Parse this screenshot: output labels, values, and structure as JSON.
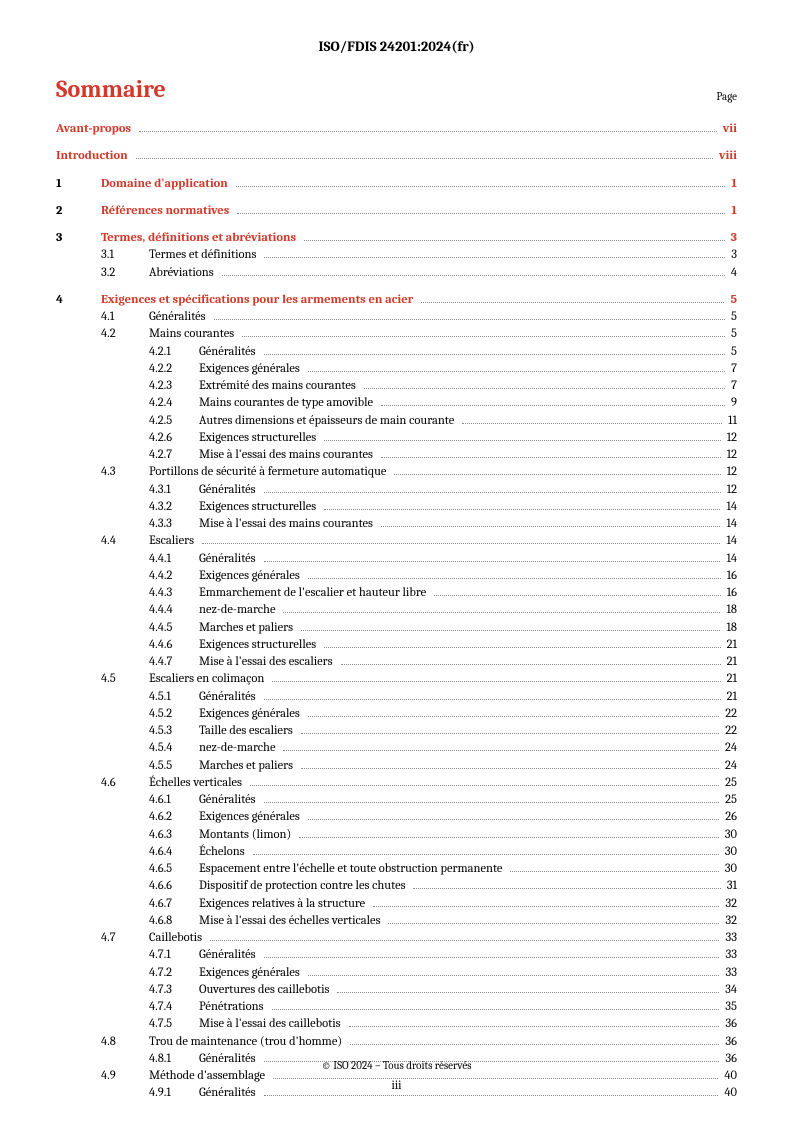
{
  "header": "ISO/FDIS 24201:2024(fr)",
  "title": "Sommaire",
  "page_label": "Page",
  "footer_copyright": "© ISO 2024 – Tous droits réservés",
  "footer_page": "iii",
  "toc": [
    {
      "level": 0,
      "num": "",
      "text": "Avant-propos",
      "page": "vii"
    },
    {
      "level": 0,
      "num": "",
      "text": "Introduction",
      "page": "viii"
    },
    {
      "level": 0,
      "num": "1",
      "text": "Domaine d'application",
      "page": "1"
    },
    {
      "level": 0,
      "num": "2",
      "text": "Références normatives",
      "page": "1"
    },
    {
      "level": 0,
      "num": "3",
      "text": "Termes, définitions et abréviations",
      "page": "3"
    },
    {
      "level": 1,
      "num": "3.1",
      "text": "Termes et définitions",
      "page": "3"
    },
    {
      "level": 1,
      "num": "3.2",
      "text": "Abréviations",
      "page": "4"
    },
    {
      "level": 0,
      "num": "4",
      "text": "Exigences et spécifications pour les armements en acier",
      "page": "5"
    },
    {
      "level": 1,
      "num": "4.1",
      "text": "Généralités",
      "page": "5"
    },
    {
      "level": 1,
      "num": "4.2",
      "text": "Mains courantes",
      "page": "5"
    },
    {
      "level": 2,
      "num": "4.2.1",
      "text": "Généralités",
      "page": "5"
    },
    {
      "level": 2,
      "num": "4.2.2",
      "text": "Exigences générales",
      "page": "7"
    },
    {
      "level": 2,
      "num": "4.2.3",
      "text": "Extrémité des mains courantes",
      "page": "7"
    },
    {
      "level": 2,
      "num": "4.2.4",
      "text": "Mains courantes de type amovible",
      "page": "9"
    },
    {
      "level": 2,
      "num": "4.2.5",
      "text": "Autres dimensions et épaisseurs de main courante",
      "page": "11"
    },
    {
      "level": 2,
      "num": "4.2.6",
      "text": "Exigences structurelles",
      "page": "12"
    },
    {
      "level": 2,
      "num": "4.2.7",
      "text": "Mise à l'essai des mains courantes",
      "page": "12"
    },
    {
      "level": 1,
      "num": "4.3",
      "text": "Portillons de sécurité à fermeture automatique",
      "page": "12"
    },
    {
      "level": 2,
      "num": "4.3.1",
      "text": "Généralités",
      "page": "12"
    },
    {
      "level": 2,
      "num": "4.3.2",
      "text": "Exigences structurelles",
      "page": "14"
    },
    {
      "level": 2,
      "num": "4.3.3",
      "text": "Mise à l'essai des mains courantes",
      "page": "14"
    },
    {
      "level": 1,
      "num": "4.4",
      "text": "Escaliers",
      "page": "14"
    },
    {
      "level": 2,
      "num": "4.4.1",
      "text": "Généralités",
      "page": "14"
    },
    {
      "level": 2,
      "num": "4.4.2",
      "text": "Exigences générales",
      "page": "16"
    },
    {
      "level": 2,
      "num": "4.4.3",
      "text": "Emmarchement de l'escalier et hauteur libre",
      "page": "16"
    },
    {
      "level": 2,
      "num": "4.4.4",
      "text": "nez-de-marche",
      "page": "18"
    },
    {
      "level": 2,
      "num": "4.4.5",
      "text": "Marches et paliers",
      "page": "18"
    },
    {
      "level": 2,
      "num": "4.4.6",
      "text": "Exigences structurelles",
      "page": "21"
    },
    {
      "level": 2,
      "num": "4.4.7",
      "text": "Mise à l'essai des escaliers",
      "page": "21"
    },
    {
      "level": 1,
      "num": "4.5",
      "text": "Escaliers en colimaçon",
      "page": "21"
    },
    {
      "level": 2,
      "num": "4.5.1",
      "text": "Généralités",
      "page": "21"
    },
    {
      "level": 2,
      "num": "4.5.2",
      "text": "Exigences générales",
      "page": "22"
    },
    {
      "level": 2,
      "num": "4.5.3",
      "text": "Taille des escaliers",
      "page": "22"
    },
    {
      "level": 2,
      "num": "4.5.4",
      "text": "nez-de-marche",
      "page": "24"
    },
    {
      "level": 2,
      "num": "4.5.5",
      "text": "Marches et paliers",
      "page": "24"
    },
    {
      "level": 1,
      "num": "4.6",
      "text": "Échelles verticales",
      "page": "25"
    },
    {
      "level": 2,
      "num": "4.6.1",
      "text": "Généralités",
      "page": "25"
    },
    {
      "level": 2,
      "num": "4.6.2",
      "text": "Exigences générales",
      "page": "26"
    },
    {
      "level": 2,
      "num": "4.6.3",
      "text": "Montants (limon)",
      "page": "30"
    },
    {
      "level": 2,
      "num": "4.6.4",
      "text": "Échelons",
      "page": "30"
    },
    {
      "level": 2,
      "num": "4.6.5",
      "text": "Espacement entre l'échelle et toute obstruction permanente",
      "page": "30"
    },
    {
      "level": 2,
      "num": "4.6.6",
      "text": "Dispositif de protection contre les chutes",
      "page": "31"
    },
    {
      "level": 2,
      "num": "4.6.7",
      "text": "Exigences relatives à la structure",
      "page": "32"
    },
    {
      "level": 2,
      "num": "4.6.8",
      "text": "Mise à l'essai des échelles verticales",
      "page": "32"
    },
    {
      "level": 1,
      "num": "4.7",
      "text": "Caillebotis",
      "page": "33"
    },
    {
      "level": 2,
      "num": "4.7.1",
      "text": "Généralités",
      "page": "33"
    },
    {
      "level": 2,
      "num": "4.7.2",
      "text": "Exigences générales",
      "page": "33"
    },
    {
      "level": 2,
      "num": "4.7.3",
      "text": "Ouvertures des caillebotis",
      "page": "34"
    },
    {
      "level": 2,
      "num": "4.7.4",
      "text": "Pénétrations",
      "page": "35"
    },
    {
      "level": 2,
      "num": "4.7.5",
      "text": "Mise à l'essai des caillebotis",
      "page": "36"
    },
    {
      "level": 1,
      "num": "4.8",
      "text": "Trou de maintenance (trou d'homme)",
      "page": "36"
    },
    {
      "level": 2,
      "num": "4.8.1",
      "text": "Généralités",
      "page": "36"
    },
    {
      "level": 1,
      "num": "4.9",
      "text": "Méthode d'assemblage",
      "page": "40"
    },
    {
      "level": 2,
      "num": "4.9.1",
      "text": "Généralités",
      "page": "40"
    }
  ]
}
